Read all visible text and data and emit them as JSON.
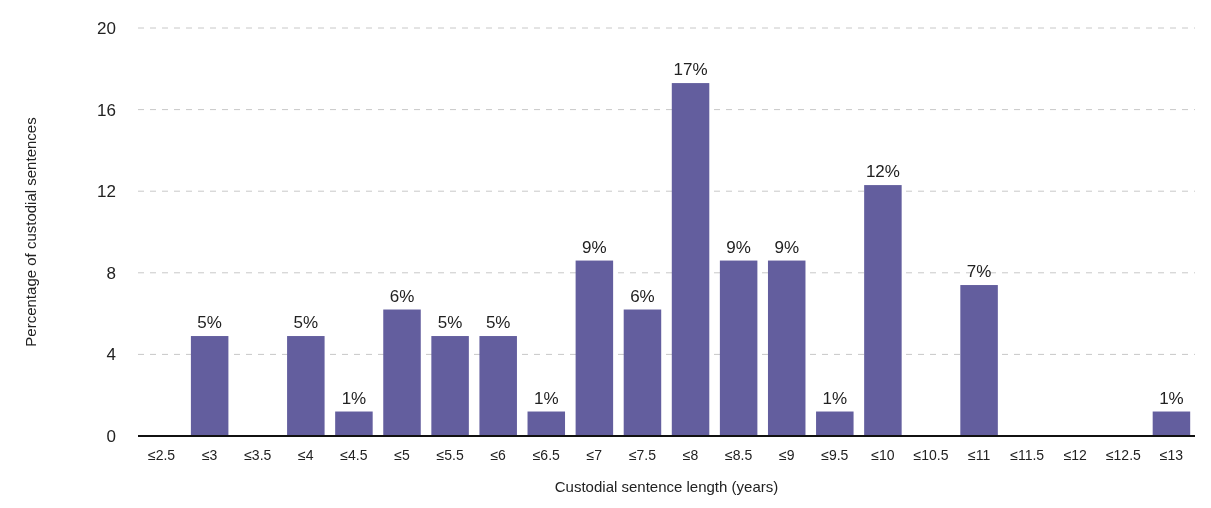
{
  "chart_data": {
    "type": "bar",
    "xlabel": "Custodial sentence length (years)",
    "ylabel": "Percentage of custodial sentences",
    "categories": [
      "≤2.5",
      "≤3",
      "≤3.5",
      "≤4",
      "≤4.5",
      "≤5",
      "≤5.5",
      "≤6",
      "≤6.5",
      "≤7",
      "≤7.5",
      "≤8",
      "≤8.5",
      "≤9",
      "≤9.5",
      "≤10",
      "≤10.5",
      "≤11",
      "≤11.5",
      "≤12",
      "≤12.5",
      "≤13"
    ],
    "values": [
      0,
      4.9,
      0,
      4.9,
      1.2,
      6.2,
      4.9,
      4.9,
      1.2,
      8.6,
      6.2,
      17.3,
      8.6,
      8.6,
      1.2,
      12.3,
      0,
      7.4,
      0,
      0,
      0,
      1.2
    ],
    "value_labels": [
      null,
      "5%",
      null,
      "5%",
      "1%",
      "6%",
      "5%",
      "5%",
      "1%",
      "9%",
      "6%",
      "17%",
      "9%",
      "9%",
      "1%",
      "12%",
      null,
      "7%",
      null,
      null,
      null,
      "1%"
    ],
    "color": "#635e9e",
    "ylim": [
      0,
      20
    ],
    "yticks": [
      0,
      4,
      8,
      12,
      16,
      20
    ],
    "grid": "y"
  }
}
